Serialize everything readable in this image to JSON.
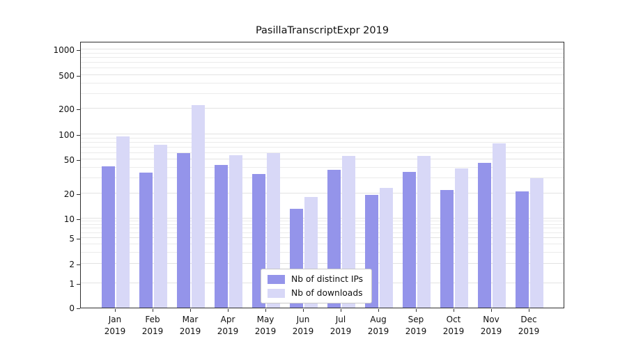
{
  "figure": {
    "background": "#ffffff"
  },
  "chart_data": {
    "type": "bar",
    "title": "PasillaTranscriptExpr 2019",
    "year": "2019",
    "categories": [
      "Jan",
      "Feb",
      "Mar",
      "Apr",
      "May",
      "Jun",
      "Jul",
      "Aug",
      "Sep",
      "Oct",
      "Nov",
      "Dec"
    ],
    "series": [
      {
        "name": "Nb of distinct IPs",
        "color": "#9494ea",
        "values": [
          42,
          35,
          60,
          43,
          34,
          13,
          38,
          19,
          36,
          22,
          46,
          21
        ]
      },
      {
        "name": "Nb of downloads",
        "color": "#d8d8f7",
        "values": [
          95,
          75,
          220,
          56,
          60,
          18,
          55,
          23,
          55,
          39,
          78,
          30
        ]
      }
    ],
    "yticks": [
      1000,
      500,
      200,
      100,
      50,
      20,
      10,
      5,
      2,
      1,
      0
    ],
    "yscale": "log-with-zero",
    "ylim": [
      0,
      1000
    ],
    "grid": true,
    "legend_position": "bottom-center"
  }
}
